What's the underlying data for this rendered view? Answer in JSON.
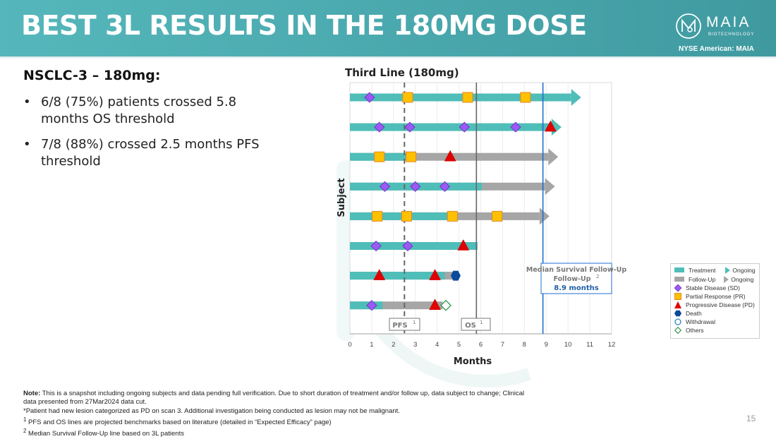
{
  "header": {
    "title": "BEST 3L RESULTS IN THE 180MG DOSE",
    "logo_name": "MAIA",
    "logo_sub": "BIOTECHNOLOGY",
    "ticker": "NYSE American: MAIA",
    "colors": {
      "header_bg": "#4aa9ae",
      "text": "#ffffff"
    }
  },
  "summary": {
    "heading": "NSCLC-3 – 180mg:",
    "bullets": [
      "6/8 (75%) patients crossed 5.8 months OS threshold",
      "7/8 (88%) crossed 2.5 months PFS threshold"
    ]
  },
  "chart_data": {
    "type": "swimmer",
    "title": "Third Line (180mg)",
    "xlabel": "Months",
    "ylabel": "Subject",
    "xlim": [
      0,
      12
    ],
    "xticks": [
      "0",
      "1",
      "2",
      "3",
      "4",
      "5",
      "6",
      "7",
      "8",
      "9",
      "10",
      "11",
      "12"
    ],
    "grid": true,
    "colors": {
      "treatment": "#4fbdb8",
      "followup": "#a6a6a6",
      "sd": "#9b59f5",
      "pr": "#ffc000",
      "pd": "#e00000",
      "death": "#0b4a9c",
      "withdrawal": "#2e86c1",
      "others": "#2e9a4a",
      "median_line": "#1f6fd0"
    },
    "reference_lines": [
      {
        "label": "PFS",
        "sup": "1",
        "x": 2.5,
        "style": "dashed"
      },
      {
        "label": "OS",
        "sup": "1",
        "x": 5.8,
        "style": "solid"
      },
      {
        "label": "Median Survival Follow-Up",
        "sup": "2",
        "value_label": "8.9 months",
        "x": 8.85,
        "style": "solid-blue"
      }
    ],
    "subjects": [
      {
        "treatment_end": 10.6,
        "followup_end": null,
        "ongoing": "treatment",
        "events": [
          {
            "type": "sd",
            "x": 0.9
          },
          {
            "type": "pr",
            "x": 2.65
          },
          {
            "type": "pr",
            "x": 5.4
          },
          {
            "type": "pr",
            "x": 8.05
          }
        ]
      },
      {
        "treatment_end": 9.7,
        "followup_end": null,
        "ongoing": "treatment",
        "events": [
          {
            "type": "sd",
            "x": 1.35
          },
          {
            "type": "sd",
            "x": 2.75
          },
          {
            "type": "sd",
            "x": 5.25
          },
          {
            "type": "sd",
            "x": 7.6
          },
          {
            "type": "pd",
            "x": 9.2
          }
        ]
      },
      {
        "treatment_end": 2.8,
        "followup_end": 9.55,
        "ongoing": "followup",
        "events": [
          {
            "type": "pr",
            "x": 1.35
          },
          {
            "type": "pr",
            "x": 2.8
          },
          {
            "type": "pd",
            "x": 4.6
          }
        ]
      },
      {
        "treatment_end": 6.05,
        "followup_end": 9.4,
        "ongoing": "followup",
        "events": [
          {
            "type": "sd",
            "x": 1.6
          },
          {
            "type": "sd",
            "x": 3.0
          },
          {
            "type": "sd",
            "x": 4.35
          }
        ]
      },
      {
        "treatment_end": 4.9,
        "followup_end": 9.15,
        "ongoing": "followup",
        "events": [
          {
            "type": "pr",
            "x": 1.25
          },
          {
            "type": "pr",
            "x": 2.6
          },
          {
            "type": "pr",
            "x": 4.7
          },
          {
            "type": "pr",
            "x": 6.75
          }
        ]
      },
      {
        "treatment_end": 5.85,
        "followup_end": null,
        "ongoing": null,
        "events": [
          {
            "type": "sd",
            "x": 1.2
          },
          {
            "type": "sd",
            "x": 2.65
          },
          {
            "type": "pd",
            "x": 5.2
          }
        ]
      },
      {
        "treatment_end": 4.35,
        "followup_end": 4.85,
        "ongoing": null,
        "events": [
          {
            "type": "pd",
            "x": 1.35
          },
          {
            "type": "pd",
            "x": 3.9
          },
          {
            "type": "death",
            "x": 4.85
          }
        ]
      },
      {
        "treatment_end": 1.5,
        "followup_end": 4.25,
        "ongoing": null,
        "events": [
          {
            "type": "sd",
            "x": 1.0
          },
          {
            "type": "pd",
            "x": 3.9
          },
          {
            "type": "others",
            "x": 4.4
          }
        ]
      }
    ],
    "legend": {
      "placement": "right",
      "entries": [
        {
          "key": "treatment",
          "label": "Treatment",
          "ongoing_label": "Ongoing"
        },
        {
          "key": "followup",
          "label": "Follow-Up",
          "ongoing_label": "Ongoing"
        },
        {
          "key": "sd",
          "label": "Stable Disease (SD)"
        },
        {
          "key": "pr",
          "label": "Partial Response (PR)"
        },
        {
          "key": "pd",
          "label": "Progressive Disease (PD)"
        },
        {
          "key": "death",
          "label": "Death"
        },
        {
          "key": "withdrawal",
          "label": "Withdrawal"
        },
        {
          "key": "others",
          "label": "Others"
        }
      ]
    }
  },
  "footnotes": {
    "note_label": "Note:",
    "note_text": " This is a snapshot including ongoing subjects and data pending full verification. Due to short duration of treatment and/or follow up, data subject to change; Clinical data presented from 27Mar2024 data cut.",
    "asterisk": "*Patient had new lesion categorized as PD on scan 3. Additional investigation being conducted as lesion may not be malignant.",
    "fn1_mark": "1",
    "fn1": " PFS and OS lines are projected benchmarks based on literature (detailed in “Expected Efficacy” page)",
    "fn2_mark": "2",
    "fn2": " Median Survival Follow-Up line based on 3L patients"
  },
  "page_number": "15"
}
